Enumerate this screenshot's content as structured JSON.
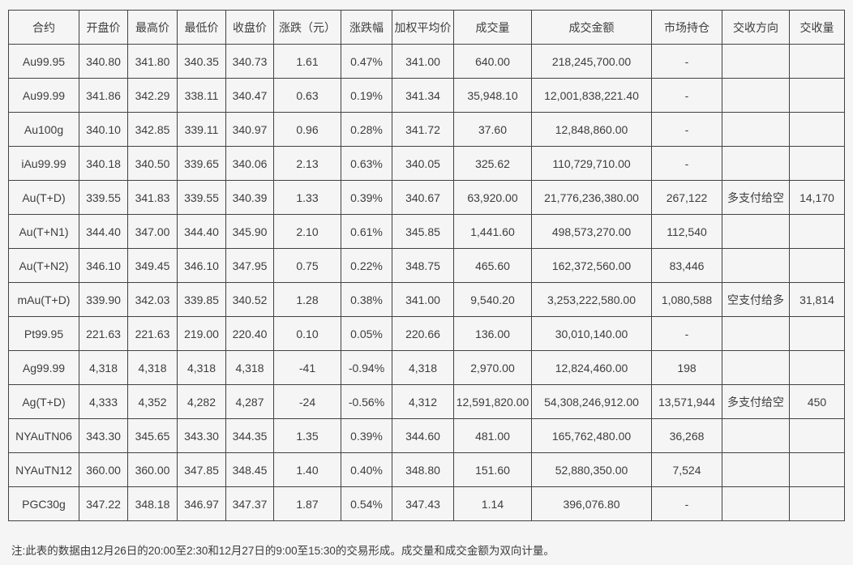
{
  "note": "注:此表的数据由12月26日的20:00至2:30和12月27日的9:00至15:30的交易形成。成交量和成交金额为双向计量。",
  "chart_data": {
    "type": "table",
    "columns": [
      "合约",
      "开盘价",
      "最高价",
      "最低价",
      "收盘价",
      "涨跌（元）",
      "涨跌幅",
      "加权平均价",
      "成交量",
      "成交金额",
      "市场持仓",
      "交收方向",
      "交收量"
    ],
    "rows": [
      [
        "Au99.95",
        "340.80",
        "341.80",
        "340.35",
        "340.73",
        "1.61",
        "0.47%",
        "341.00",
        "640.00",
        "218,245,700.00",
        "-",
        "",
        ""
      ],
      [
        "Au99.99",
        "341.86",
        "342.29",
        "338.11",
        "340.47",
        "0.63",
        "0.19%",
        "341.34",
        "35,948.10",
        "12,001,838,221.40",
        "-",
        "",
        ""
      ],
      [
        "Au100g",
        "340.10",
        "342.85",
        "339.11",
        "340.97",
        "0.96",
        "0.28%",
        "341.72",
        "37.60",
        "12,848,860.00",
        "-",
        "",
        ""
      ],
      [
        "iAu99.99",
        "340.18",
        "340.50",
        "339.65",
        "340.06",
        "2.13",
        "0.63%",
        "340.05",
        "325.62",
        "110,729,710.00",
        "-",
        "",
        ""
      ],
      [
        "Au(T+D)",
        "339.55",
        "341.83",
        "339.55",
        "340.39",
        "1.33",
        "0.39%",
        "340.67",
        "63,920.00",
        "21,776,236,380.00",
        "267,122",
        "多支付给空",
        "14,170"
      ],
      [
        "Au(T+N1)",
        "344.40",
        "347.00",
        "344.40",
        "345.90",
        "2.10",
        "0.61%",
        "345.85",
        "1,441.60",
        "498,573,270.00",
        "112,540",
        "",
        ""
      ],
      [
        "Au(T+N2)",
        "346.10",
        "349.45",
        "346.10",
        "347.95",
        "0.75",
        "0.22%",
        "348.75",
        "465.60",
        "162,372,560.00",
        "83,446",
        "",
        ""
      ],
      [
        "mAu(T+D)",
        "339.90",
        "342.03",
        "339.85",
        "340.52",
        "1.28",
        "0.38%",
        "341.00",
        "9,540.20",
        "3,253,222,580.00",
        "1,080,588",
        "空支付给多",
        "31,814"
      ],
      [
        "Pt99.95",
        "221.63",
        "221.63",
        "219.00",
        "220.40",
        "0.10",
        "0.05%",
        "220.66",
        "136.00",
        "30,010,140.00",
        "-",
        "",
        ""
      ],
      [
        "Ag99.99",
        "4,318",
        "4,318",
        "4,318",
        "4,318",
        "-41",
        "-0.94%",
        "4,318",
        "2,970.00",
        "12,824,460.00",
        "198",
        "",
        ""
      ],
      [
        "Ag(T+D)",
        "4,333",
        "4,352",
        "4,282",
        "4,287",
        "-24",
        "-0.56%",
        "4,312",
        "12,591,820.00",
        "54,308,246,912.00",
        "13,571,944",
        "多支付给空",
        "450"
      ],
      [
        "NYAuTN06",
        "343.30",
        "345.65",
        "343.30",
        "344.35",
        "1.35",
        "0.39%",
        "344.60",
        "481.00",
        "165,762,480.00",
        "36,268",
        "",
        ""
      ],
      [
        "NYAuTN12",
        "360.00",
        "360.00",
        "347.85",
        "348.45",
        "1.40",
        "0.40%",
        "348.80",
        "151.60",
        "52,880,350.00",
        "7,524",
        "",
        ""
      ],
      [
        "PGC30g",
        "347.22",
        "348.18",
        "346.97",
        "347.37",
        "1.87",
        "0.54%",
        "347.43",
        "1.14",
        "396,076.80",
        "-",
        "",
        ""
      ]
    ]
  }
}
